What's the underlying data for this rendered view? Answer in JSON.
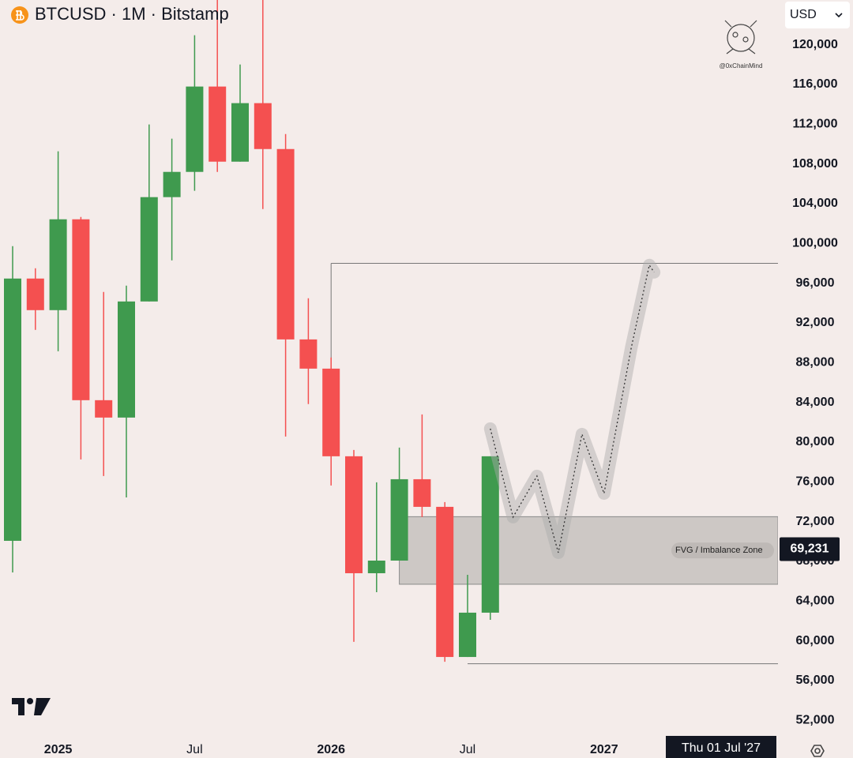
{
  "chart_data": {
    "type": "candlestick",
    "title": "BTCUSD · 1M · Bitstamp",
    "currency": "USD",
    "watermark": "@0xChainMind",
    "categories": [
      null,
      null,
      "2025",
      null,
      null,
      null,
      null,
      null,
      "Jul",
      null,
      null,
      null,
      null,
      null,
      "2026",
      null,
      null,
      null,
      null,
      null,
      "Jul",
      null,
      null,
      null,
      null,
      null,
      "2027",
      null,
      null,
      null,
      null,
      null,
      null,
      null
    ],
    "open": [
      70071,
      96467,
      93286,
      102430,
      84224,
      82475,
      94160,
      104660,
      107200,
      115790,
      108230,
      114120,
      109500,
      90340,
      87400,
      78580,
      66810,
      68080,
      76270,
      73490,
      58380,
      62840,
      null,
      null,
      null,
      null,
      null,
      null,
      null,
      null,
      null,
      null,
      null,
      null
    ],
    "high": [
      99727,
      97500,
      109270,
      102670,
      95120,
      95750,
      111970,
      110540,
      120950,
      124500,
      118010,
      124500,
      111010,
      94480,
      88520,
      79210,
      75960,
      79450,
      82790,
      73970,
      66650,
      78580,
      null,
      null,
      null,
      null,
      null,
      null,
      null,
      null,
      null,
      null,
      null,
      null
    ],
    "low": [
      66890,
      91300,
      89150,
      78260,
      76590,
      74440,
      94160,
      98300,
      105300,
      107200,
      108230,
      103460,
      80570,
      83830,
      75640,
      59900,
      64900,
      68080,
      72460,
      57900,
      58380,
      62120,
      null,
      null,
      null,
      null,
      null,
      null,
      null,
      null,
      null,
      null,
      null,
      null
    ],
    "close": [
      96467,
      93286,
      102430,
      84224,
      82475,
      94160,
      104660,
      107200,
      115790,
      108230,
      114120,
      109500,
      90340,
      87400,
      78580,
      66810,
      68080,
      76270,
      73490,
      58380,
      62840,
      78580,
      null,
      null,
      null,
      null,
      null,
      null,
      null,
      null,
      null,
      null,
      null,
      null
    ],
    "up_color": "#3f9a4e",
    "down_color": "#f45050",
    "ylim": [
      50200,
      124500
    ],
    "yticks": [
      {
        "value": 52000,
        "label": "52,000"
      },
      {
        "value": 56000,
        "label": "56,000"
      },
      {
        "value": 60000,
        "label": "60,000"
      },
      {
        "value": 64000,
        "label": "64,000"
      },
      {
        "value": 68000,
        "label": "68,000"
      },
      {
        "value": 72000,
        "label": "72,000"
      },
      {
        "value": 76000,
        "label": "76,000"
      },
      {
        "value": 80000,
        "label": "80,000"
      },
      {
        "value": 84000,
        "label": "84,000"
      },
      {
        "value": 88000,
        "label": "88,000"
      },
      {
        "value": 92000,
        "label": "92,000"
      },
      {
        "value": 96000,
        "label": "96,000"
      },
      {
        "value": 100000,
        "label": "100,000"
      },
      {
        "value": 104000,
        "label": "104,000"
      },
      {
        "value": 108000,
        "label": "108,000"
      },
      {
        "value": 112000,
        "label": "112,000"
      },
      {
        "value": 116000,
        "label": "116,000"
      },
      {
        "value": 120000,
        "label": "120,000"
      }
    ],
    "levels": [
      {
        "start": 14,
        "value": 98000
      },
      {
        "start": 20,
        "value": 57700
      }
    ],
    "zone": {
      "label": "FVG / Imbalance Zone",
      "start": 17,
      "top": 72500,
      "bottom": 65700
    },
    "projection": {
      "x": [
        21.0,
        22.0,
        23.05,
        23.99,
        25.03,
        26.0,
        27.2,
        27.99,
        28.2
      ],
      "values": [
        81360,
        72460,
        76590,
        68880,
        80800,
        74840,
        89550,
        97820,
        97100
      ]
    },
    "last_price": {
      "value": 69231,
      "label": "69,231"
    },
    "crosshair_date": "Thu 01 Jul '27"
  }
}
